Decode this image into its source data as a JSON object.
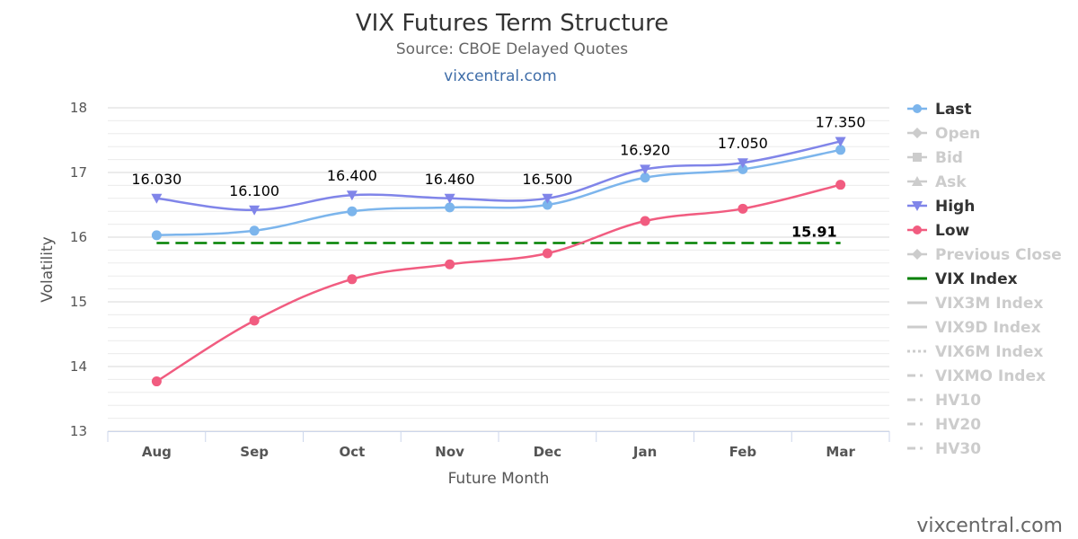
{
  "chart_data": {
    "type": "line",
    "title": "VIX Futures Term Structure",
    "subtitle": "Source: CBOE Delayed Quotes",
    "source_link": "vixcentral.com",
    "credit": "vixcentral.com",
    "xlabel": "Future Month",
    "ylabel": "Volatility",
    "ylim": [
      13,
      18
    ],
    "yticks": [
      "13",
      "14",
      "15",
      "16",
      "17",
      "18"
    ],
    "categories": [
      "Aug",
      "Sep",
      "Oct",
      "Nov",
      "Dec",
      "Jan",
      "Feb",
      "Mar"
    ],
    "grid": true,
    "legend_position": "right",
    "series": [
      {
        "name": "Last",
        "color": "#7cb5ec",
        "marker": "circle",
        "values": [
          16.03,
          16.1,
          16.4,
          16.46,
          16.5,
          16.92,
          17.05,
          17.35
        ],
        "labels": [
          "16.030",
          "16.100",
          "16.400",
          "16.460",
          "16.500",
          "16.920",
          "17.050",
          "17.350"
        ]
      },
      {
        "name": "High",
        "color": "#8085e9",
        "marker": "triangle-down",
        "values": [
          16.6,
          16.42,
          16.65,
          16.6,
          16.6,
          17.05,
          17.15,
          17.48
        ]
      },
      {
        "name": "Low",
        "color": "#f15c80",
        "marker": "circle",
        "values": [
          13.77,
          14.71,
          15.35,
          15.58,
          15.75,
          16.25,
          16.44,
          16.81
        ]
      }
    ],
    "vix_index": {
      "name": "VIX Index",
      "value": 15.91,
      "label": "15.91",
      "color": "#008000"
    },
    "legend": [
      {
        "name": "Last",
        "state": "active",
        "symbol": "circle",
        "color": "#7cb5ec"
      },
      {
        "name": "Open",
        "state": "hidden",
        "symbol": "diamond",
        "color": "#cccccc"
      },
      {
        "name": "Bid",
        "state": "hidden",
        "symbol": "square",
        "color": "#cccccc"
      },
      {
        "name": "Ask",
        "state": "hidden",
        "symbol": "triangle",
        "color": "#cccccc"
      },
      {
        "name": "High",
        "state": "active",
        "symbol": "triangle-down",
        "color": "#8085e9"
      },
      {
        "name": "Low",
        "state": "active",
        "symbol": "circle",
        "color": "#f15c80"
      },
      {
        "name": "Previous Close",
        "state": "hidden",
        "symbol": "diamond",
        "color": "#cccccc"
      },
      {
        "name": "VIX Index",
        "state": "active",
        "symbol": "line",
        "color": "#008000"
      },
      {
        "name": "VIX3M Index",
        "state": "hidden",
        "symbol": "line",
        "color": "#cccccc"
      },
      {
        "name": "VIX9D Index",
        "state": "hidden",
        "symbol": "line",
        "color": "#cccccc"
      },
      {
        "name": "VIX6M Index",
        "state": "hidden",
        "symbol": "dotted",
        "color": "#cccccc"
      },
      {
        "name": "VIXMO Index",
        "state": "hidden",
        "symbol": "dashdot",
        "color": "#cccccc"
      },
      {
        "name": "HV10",
        "state": "hidden",
        "symbol": "dashdot",
        "color": "#cccccc"
      },
      {
        "name": "HV20",
        "state": "hidden",
        "symbol": "dashdot",
        "color": "#cccccc"
      },
      {
        "name": "HV30",
        "state": "hidden",
        "symbol": "dashdot",
        "color": "#cccccc"
      }
    ]
  }
}
